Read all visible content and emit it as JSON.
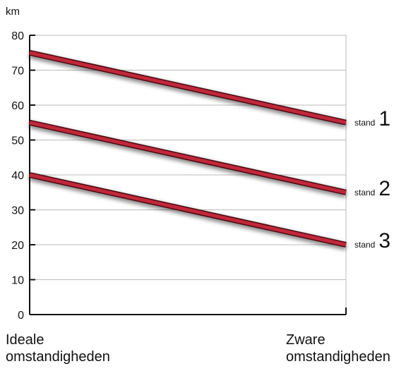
{
  "chart_data": {
    "type": "line",
    "unit": "km",
    "categories": [
      "Ideale omstandigheden",
      "Zware omstandigheden"
    ],
    "category_lines": [
      [
        "Ideale",
        "omstandigheden"
      ],
      [
        "Zware",
        "omstandigheden"
      ]
    ],
    "ylim": [
      0,
      80
    ],
    "yticks": [
      "0",
      "10",
      "20",
      "30",
      "40",
      "50",
      "60",
      "70",
      "80"
    ],
    "grid": true,
    "series": [
      {
        "name": "stand 1",
        "word": "stand",
        "num": "1",
        "values": [
          75,
          55
        ]
      },
      {
        "name": "stand 2",
        "word": "stand",
        "num": "2",
        "values": [
          55,
          35
        ]
      },
      {
        "name": "stand 3",
        "word": "stand",
        "num": "3",
        "values": [
          40,
          20
        ]
      }
    ],
    "colors": {
      "line": "#c0283a",
      "line_edge": "#4a0810",
      "grid": "#bbbbbb",
      "axis": "#111111"
    }
  }
}
